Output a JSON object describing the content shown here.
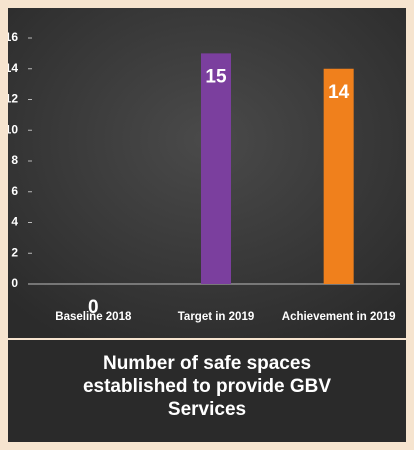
{
  "chart_data": {
    "type": "bar",
    "title": "Number of safe spaces established to provide GBV Services",
    "categories": [
      "Baseline 2018",
      "Target in 2019",
      "Achievement in 2019"
    ],
    "values": [
      0,
      15,
      14
    ],
    "colors": [
      "#7b3f9e",
      "#7b3f9e",
      "#f0801c"
    ],
    "ylim": [
      0,
      16
    ],
    "yticks": [
      0,
      2,
      4,
      6,
      8,
      10,
      12,
      14,
      16
    ],
    "grid": false
  }
}
